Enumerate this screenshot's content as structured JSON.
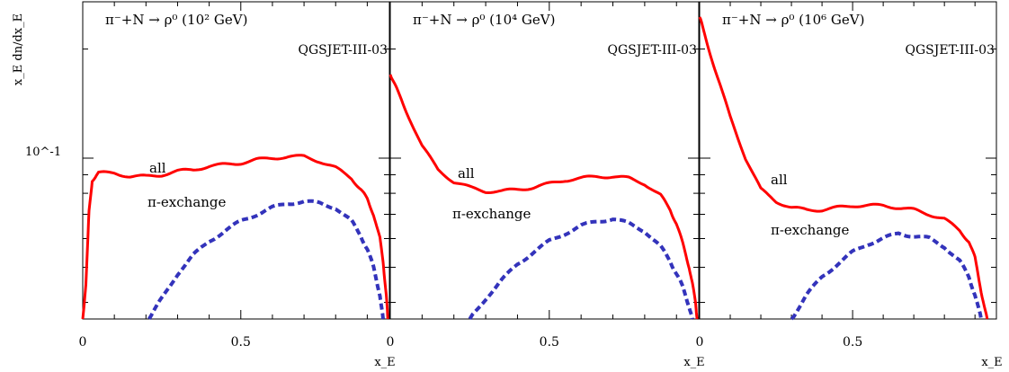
{
  "figure": {
    "ylabel": "x_E dn/dx_E",
    "y_tick_label": "10^-1",
    "y_scale": "log"
  },
  "chart_data": [
    {
      "type": "line",
      "title": "π⁻+N → ρ⁰ (10² GeV)",
      "model": "QGSJET-III-03",
      "xlabel": "x_E",
      "xlim": [
        0,
        0.97
      ],
      "ylim": [
        0.036,
        0.27
      ],
      "x_ticks": [
        "0",
        "0.5"
      ],
      "series": [
        {
          "name": "all",
          "color": "#ff0000",
          "style": "solid",
          "x": [
            0.0,
            0.01,
            0.02,
            0.03,
            0.05,
            0.1,
            0.15,
            0.2,
            0.25,
            0.3,
            0.35,
            0.4,
            0.45,
            0.5,
            0.55,
            0.6,
            0.65,
            0.7,
            0.75,
            0.8,
            0.85,
            0.88,
            0.9,
            0.92,
            0.94,
            0.95,
            0.96,
            0.965
          ],
          "y": [
            0.036,
            0.045,
            0.071,
            0.087,
            0.091,
            0.091,
            0.089,
            0.089,
            0.09,
            0.092,
            0.093,
            0.095,
            0.096,
            0.097,
            0.099,
            0.1,
            0.101,
            0.101,
            0.098,
            0.094,
            0.088,
            0.082,
            0.077,
            0.07,
            0.06,
            0.052,
            0.042,
            0.036
          ]
        },
        {
          "name": "π-exchange",
          "color": "#3333bb",
          "style": "dashed",
          "x": [
            0.21,
            0.25,
            0.3,
            0.35,
            0.4,
            0.45,
            0.5,
            0.55,
            0.6,
            0.65,
            0.7,
            0.75,
            0.8,
            0.85,
            0.88,
            0.9,
            0.92,
            0.94,
            0.95
          ],
          "y": [
            0.036,
            0.041,
            0.048,
            0.054,
            0.059,
            0.063,
            0.067,
            0.07,
            0.073,
            0.075,
            0.076,
            0.075,
            0.073,
            0.067,
            0.061,
            0.056,
            0.05,
            0.042,
            0.036
          ]
        }
      ]
    },
    {
      "type": "line",
      "title": "π⁻+N → ρ⁰ (10⁴ GeV)",
      "model": "QGSJET-III-03",
      "xlabel": "x_E",
      "xlim": [
        0,
        0.97
      ],
      "ylim": [
        0.036,
        0.27
      ],
      "x_ticks": [
        "0",
        "0.5"
      ],
      "series": [
        {
          "name": "all",
          "color": "#ff0000",
          "style": "solid",
          "x": [
            0.0,
            0.02,
            0.05,
            0.1,
            0.15,
            0.2,
            0.25,
            0.3,
            0.35,
            0.4,
            0.45,
            0.5,
            0.55,
            0.6,
            0.65,
            0.7,
            0.75,
            0.8,
            0.85,
            0.88,
            0.9,
            0.92,
            0.94,
            0.95,
            0.96,
            0.965
          ],
          "y": [
            0.17,
            0.155,
            0.135,
            0.108,
            0.093,
            0.086,
            0.083,
            0.081,
            0.081,
            0.082,
            0.083,
            0.085,
            0.087,
            0.088,
            0.089,
            0.089,
            0.088,
            0.085,
            0.079,
            0.072,
            0.066,
            0.058,
            0.05,
            0.045,
            0.04,
            0.036
          ]
        },
        {
          "name": "π-exchange",
          "color": "#3333bb",
          "style": "dashed",
          "x": [
            0.25,
            0.3,
            0.35,
            0.4,
            0.45,
            0.5,
            0.55,
            0.6,
            0.65,
            0.7,
            0.75,
            0.8,
            0.85,
            0.88,
            0.9,
            0.92,
            0.94,
            0.95
          ],
          "y": [
            0.036,
            0.041,
            0.046,
            0.051,
            0.055,
            0.059,
            0.062,
            0.065,
            0.067,
            0.068,
            0.066,
            0.063,
            0.057,
            0.052,
            0.048,
            0.044,
            0.039,
            0.036
          ]
        }
      ]
    },
    {
      "type": "line",
      "title": "π⁻+N → ρ⁰ (10⁶ GeV)",
      "model": "QGSJET-III-03",
      "xlabel": "x_E",
      "xlim": [
        0,
        0.97
      ],
      "ylim": [
        0.036,
        0.27
      ],
      "x_ticks": [
        "0",
        "0.5"
      ],
      "series": [
        {
          "name": "all",
          "color": "#ff0000",
          "style": "solid",
          "x": [
            0.0,
            0.02,
            0.05,
            0.1,
            0.15,
            0.2,
            0.25,
            0.3,
            0.35,
            0.4,
            0.45,
            0.5,
            0.55,
            0.6,
            0.65,
            0.7,
            0.75,
            0.8,
            0.85,
            0.88,
            0.9,
            0.92,
            0.94
          ],
          "y": [
            0.245,
            0.215,
            0.175,
            0.13,
            0.1,
            0.082,
            0.076,
            0.073,
            0.072,
            0.072,
            0.073,
            0.074,
            0.074,
            0.074,
            0.073,
            0.072,
            0.07,
            0.068,
            0.063,
            0.059,
            0.053,
            0.043,
            0.036
          ]
        },
        {
          "name": "π-exchange",
          "color": "#3333bb",
          "style": "dashed",
          "x": [
            0.3,
            0.35,
            0.4,
            0.45,
            0.5,
            0.55,
            0.6,
            0.65,
            0.7,
            0.75,
            0.8,
            0.85,
            0.88,
            0.9,
            0.92
          ],
          "y": [
            0.036,
            0.042,
            0.047,
            0.051,
            0.055,
            0.058,
            0.06,
            0.062,
            0.061,
            0.06,
            0.057,
            0.052,
            0.047,
            0.042,
            0.036
          ]
        }
      ]
    }
  ]
}
